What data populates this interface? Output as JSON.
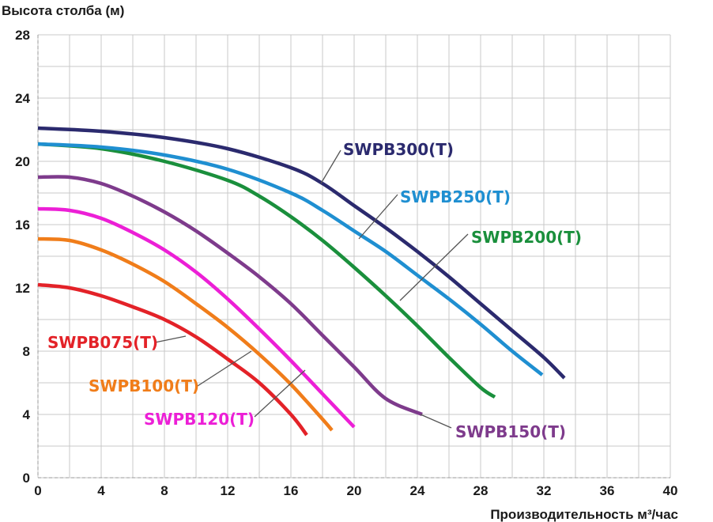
{
  "chart_data": {
    "type": "line",
    "ylabel": "Высота столба (м)",
    "xlabel": "Производительность м³/час",
    "xlim": [
      0,
      40
    ],
    "ylim": [
      0,
      28
    ],
    "xticks": [
      0,
      4,
      8,
      12,
      16,
      20,
      24,
      28,
      32,
      36,
      40
    ],
    "yticks": [
      0,
      4,
      8,
      12,
      16,
      20,
      24,
      28
    ],
    "grid": "major every 2 units on both axes",
    "series": [
      {
        "name": "SWPB075(T)",
        "color": "#e32228",
        "points": [
          [
            0,
            12.2
          ],
          [
            2,
            12.0
          ],
          [
            4,
            11.5
          ],
          [
            6,
            10.8
          ],
          [
            8,
            10.0
          ],
          [
            10,
            8.9
          ],
          [
            12,
            7.5
          ],
          [
            14,
            6.0
          ],
          [
            16,
            4.0
          ],
          [
            17,
            2.7
          ]
        ]
      },
      {
        "name": "SWPB100(T)",
        "color": "#f07d1a",
        "points": [
          [
            0,
            15.1
          ],
          [
            2,
            15.0
          ],
          [
            4,
            14.4
          ],
          [
            6,
            13.5
          ],
          [
            8,
            12.4
          ],
          [
            10,
            11.0
          ],
          [
            12,
            9.5
          ],
          [
            14,
            7.8
          ],
          [
            16,
            5.9
          ],
          [
            18,
            3.7
          ],
          [
            18.6,
            3.0
          ]
        ]
      },
      {
        "name": "SWPB120(T)",
        "color": "#ec1fd6",
        "points": [
          [
            0,
            17.0
          ],
          [
            2,
            16.9
          ],
          [
            4,
            16.4
          ],
          [
            6,
            15.5
          ],
          [
            8,
            14.4
          ],
          [
            10,
            13.0
          ],
          [
            12,
            11.3
          ],
          [
            14,
            9.4
          ],
          [
            16,
            7.4
          ],
          [
            18,
            5.3
          ],
          [
            20,
            3.2
          ]
        ]
      },
      {
        "name": "SWPB150(T)",
        "color": "#7e3b8c",
        "points": [
          [
            0,
            19.0
          ],
          [
            2,
            19.0
          ],
          [
            4,
            18.6
          ],
          [
            6,
            17.8
          ],
          [
            8,
            16.8
          ],
          [
            10,
            15.6
          ],
          [
            12,
            14.2
          ],
          [
            14,
            12.7
          ],
          [
            16,
            11.0
          ],
          [
            18,
            9.0
          ],
          [
            20,
            7.0
          ],
          [
            22,
            5.0
          ],
          [
            24.3,
            4.0
          ]
        ]
      },
      {
        "name": "SWPB200(T)",
        "color": "#1a8f3c",
        "points": [
          [
            0,
            21.1
          ],
          [
            4,
            20.8
          ],
          [
            8,
            20.0
          ],
          [
            12,
            18.8
          ],
          [
            14,
            17.8
          ],
          [
            16,
            16.5
          ],
          [
            18,
            15.0
          ],
          [
            20,
            13.3
          ],
          [
            22,
            11.5
          ],
          [
            24,
            9.6
          ],
          [
            26,
            7.6
          ],
          [
            28,
            5.7
          ],
          [
            28.9,
            5.1
          ]
        ]
      },
      {
        "name": "SWPB250(T)",
        "color": "#1f8fd1",
        "points": [
          [
            0,
            21.1
          ],
          [
            4,
            20.9
          ],
          [
            8,
            20.4
          ],
          [
            12,
            19.5
          ],
          [
            16,
            18.0
          ],
          [
            18,
            16.9
          ],
          [
            20,
            15.6
          ],
          [
            22,
            14.3
          ],
          [
            24,
            12.8
          ],
          [
            26,
            11.3
          ],
          [
            28,
            9.7
          ],
          [
            30,
            8.0
          ],
          [
            31.9,
            6.5
          ]
        ]
      },
      {
        "name": "SWPB300(T)",
        "color": "#2b2a6e",
        "points": [
          [
            0,
            22.1
          ],
          [
            4,
            21.9
          ],
          [
            8,
            21.5
          ],
          [
            12,
            20.8
          ],
          [
            16,
            19.6
          ],
          [
            18,
            18.6
          ],
          [
            20,
            17.2
          ],
          [
            22,
            15.8
          ],
          [
            24,
            14.3
          ],
          [
            26,
            12.7
          ],
          [
            28,
            11.0
          ],
          [
            30,
            9.3
          ],
          [
            32,
            7.6
          ],
          [
            33.3,
            6.3
          ]
        ]
      }
    ]
  }
}
